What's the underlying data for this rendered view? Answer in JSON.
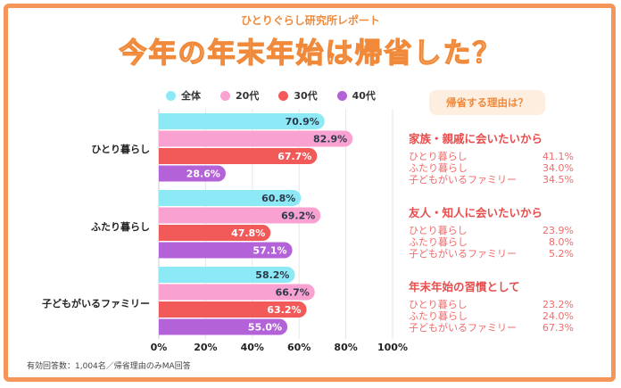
{
  "header": {
    "subtitle": "ひとりぐらし研究所レポート",
    "title": "今年の年末年始は帰省した？"
  },
  "chart_data": {
    "type": "bar",
    "orientation": "horizontal",
    "categories": [
      "ひとり暮らし",
      "ふたり暮らし",
      "子どもがいるファミリー"
    ],
    "series": [
      {
        "name": "全体",
        "color": "#8ee9f7",
        "values": [
          70.9,
          60.8,
          58.2
        ]
      },
      {
        "name": "20代",
        "color": "#f9a2d2",
        "values": [
          82.9,
          69.2,
          66.7
        ]
      },
      {
        "name": "30代",
        "color": "#f25a5a",
        "values": [
          67.7,
          47.8,
          63.2
        ]
      },
      {
        "name": "40代",
        "color": "#b462d8",
        "values": [
          28.6,
          57.1,
          55.0
        ]
      }
    ],
    "value_labels": [
      [
        "70.9%",
        "60.8%",
        "58.2%"
      ],
      [
        "82.9%",
        "69.2%",
        "66.7%"
      ],
      [
        "67.7%",
        "47.8%",
        "63.2%"
      ],
      [
        "28.6%",
        "57.1%",
        "55.0%"
      ]
    ],
    "xlim": [
      0,
      100
    ],
    "xticks": [
      "0%",
      "20%",
      "40%",
      "60%",
      "80%",
      "100%"
    ],
    "grid": true,
    "legend": "top"
  },
  "reasons": {
    "heading": "帰省する理由は？",
    "groups": [
      {
        "title": "家族・親戚に会いたいから",
        "rows": [
          [
            "ひとり暮らし",
            "41.1%"
          ],
          [
            "ふたり暮らし",
            "34.0%"
          ],
          [
            "子どもがいるファミリー",
            "34.5%"
          ]
        ]
      },
      {
        "title": "友人・知人に会いたいから",
        "rows": [
          [
            "ひとり暮らし",
            "23.9%"
          ],
          [
            "ふたり暮らし",
            "8.0%"
          ],
          [
            "子どもがいるファミリー",
            "5.2%"
          ]
        ]
      },
      {
        "title": "年末年始の習慣として",
        "rows": [
          [
            "ひとり暮らし",
            "23.2%"
          ],
          [
            "ふたり暮らし",
            "24.0%"
          ],
          [
            "子どもがいるファミリー",
            "67.3%"
          ]
        ]
      }
    ]
  },
  "footnote": "有効回答数：1,004名／帰省理由のみMA回答"
}
